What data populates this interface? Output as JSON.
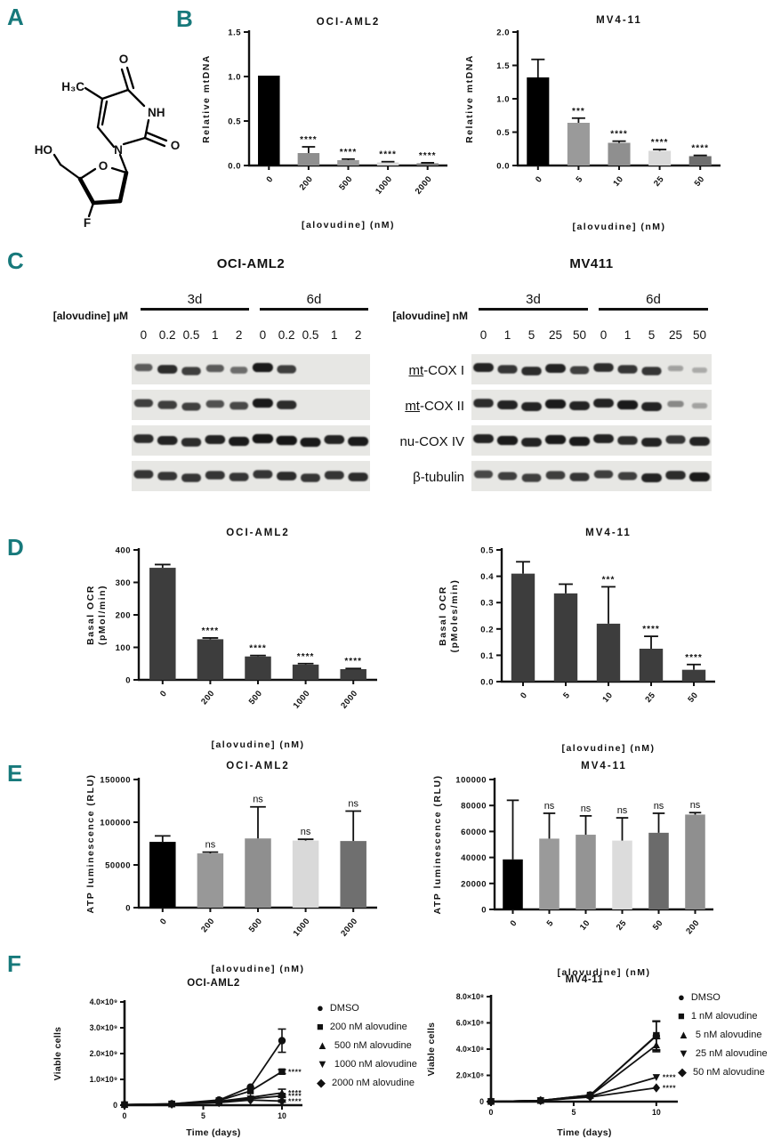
{
  "panels": {
    "a": "A",
    "b": "B",
    "c": "C",
    "d": "D",
    "e": "E",
    "f": "F"
  },
  "colors": {
    "panel_letter": "#17797b",
    "axis": "#111111",
    "bar_black": "#000000",
    "bar_gray": "#8f8f8f",
    "bar_light": "#d9d9d9",
    "bar_dark": "#6e6e6e",
    "band": "#151515",
    "blot_bg": "#e7e7e4"
  },
  "panelA": {
    "molecule_name": "alovudine",
    "atoms": {
      "h3c": "H₃C",
      "o_top": "O",
      "nh": "NH",
      "o_right": "O",
      "n": "N",
      "o_ring": "O",
      "ho": "HO",
      "f": "F"
    }
  },
  "panelC": {
    "row_labels": [
      {
        "prefix": "mt",
        "rest": "-COX I",
        "underline": true
      },
      {
        "prefix": "mt",
        "rest": "-COX II",
        "underline": true
      },
      {
        "prefix": "nu",
        "rest": "-COX IV",
        "underline": false
      },
      {
        "prefix": "β",
        "rest": "-tubulin",
        "underline": false
      }
    ],
    "left": {
      "title": "OCI-AML2",
      "unit_label": "[alovudine] µM",
      "group1": "3d",
      "group2": "6d",
      "lanes": [
        "0",
        "0.2",
        "0.5",
        "1",
        "2",
        "0",
        "0.2",
        "0.5",
        "1",
        "2"
      ],
      "rows": [
        {
          "name": "mt-COX I",
          "intensities": [
            0.55,
            0.85,
            0.75,
            0.55,
            0.45,
            0.95,
            0.75,
            0,
            0,
            0
          ]
        },
        {
          "name": "mt-COX II",
          "intensities": [
            0.7,
            0.75,
            0.7,
            0.6,
            0.65,
            0.95,
            0.85,
            0,
            0,
            0
          ]
        },
        {
          "name": "nu-COX IV",
          "intensities": [
            0.85,
            0.9,
            0.85,
            0.9,
            0.95,
            1,
            1,
            0.95,
            0.9,
            0.95
          ]
        },
        {
          "name": "β-tubulin",
          "intensities": [
            0.8,
            0.8,
            0.8,
            0.8,
            0.8,
            0.8,
            0.85,
            0.8,
            0.8,
            0.85
          ]
        }
      ]
    },
    "right": {
      "title": "MV411",
      "unit_label": "[alovudine] nM",
      "group1": "3d",
      "group2": "6d",
      "lanes": [
        "0",
        "1",
        "5",
        "25",
        "50",
        "0",
        "1",
        "5",
        "25",
        "50"
      ],
      "rows": [
        {
          "name": "mt-COX I",
          "intensities": [
            0.9,
            0.8,
            0.85,
            0.9,
            0.7,
            0.85,
            0.8,
            0.8,
            0.15,
            0.1
          ]
        },
        {
          "name": "mt-COX II",
          "intensities": [
            0.85,
            0.9,
            0.9,
            0.95,
            0.9,
            0.9,
            0.95,
            0.9,
            0.3,
            0.15
          ]
        },
        {
          "name": "nu-COX IV",
          "intensities": [
            0.9,
            0.95,
            0.9,
            0.95,
            0.95,
            0.9,
            0.85,
            0.9,
            0.8,
            0.9
          ]
        },
        {
          "name": "β-tubulin",
          "intensities": [
            0.65,
            0.7,
            0.75,
            0.75,
            0.8,
            0.7,
            0.7,
            0.9,
            0.85,
            0.95
          ]
        }
      ]
    }
  },
  "chart_data": [
    {
      "id": "b-left",
      "type": "bar",
      "title": "OCI-AML2",
      "ylabel": "Relative mtDNA",
      "xlabel": "[alovudine] (nM)",
      "categories": [
        "0",
        "200",
        "500",
        "1000",
        "2000"
      ],
      "values": [
        1.01,
        0.14,
        0.06,
        0.035,
        0.025
      ],
      "errors": [
        0,
        0.07,
        0.012,
        0.008,
        0.006
      ],
      "sig": [
        "",
        "****",
        "****",
        "****",
        "****"
      ],
      "bar_colors": [
        "#000000",
        "#8f8f8f",
        "#9a9a9a",
        "#d9d9d9",
        "#7f7f7f"
      ],
      "ylim": [
        0,
        1.5
      ],
      "yticks": [
        0,
        0.5,
        1,
        1.5
      ],
      "ytick_labels": [
        "0.0",
        "0.5",
        "1.0",
        "1.5"
      ]
    },
    {
      "id": "b-right",
      "type": "bar",
      "title": "MV4-11",
      "ylabel": "Relative mtDNA",
      "xlabel": "[alovudine] (nM)",
      "categories": [
        "0",
        "5",
        "10",
        "25",
        "50"
      ],
      "values": [
        1.32,
        0.64,
        0.34,
        0.22,
        0.14
      ],
      "errors": [
        0.27,
        0.07,
        0.025,
        0.02,
        0.012
      ],
      "sig": [
        "",
        "***",
        "****",
        "****",
        "****"
      ],
      "bar_colors": [
        "#000000",
        "#9a9a9a",
        "#8f8f8f",
        "#d9d9d9",
        "#6e6e6e"
      ],
      "ylim": [
        0,
        2
      ],
      "yticks": [
        0,
        0.5,
        1,
        1.5,
        2
      ],
      "ytick_labels": [
        "0.0",
        "0.5",
        "1.0",
        "1.5",
        "2.0"
      ]
    },
    {
      "id": "d-left",
      "type": "bar",
      "title": "OCI-AML2",
      "ylabel_lines": [
        "Basal OCR",
        "(pMol/min)"
      ],
      "xlabel": "[alovudine] (nM)",
      "categories": [
        "0",
        "200",
        "500",
        "1000",
        "2000"
      ],
      "values": [
        345,
        125,
        72,
        47,
        33
      ],
      "errors": [
        10,
        4,
        3,
        3,
        2
      ],
      "sig": [
        "",
        "****",
        "****",
        "****",
        "****"
      ],
      "bar_colors": [
        "#3d3d3d",
        "#3d3d3d",
        "#3d3d3d",
        "#3d3d3d",
        "#3d3d3d"
      ],
      "ylim": [
        0,
        400
      ],
      "yticks": [
        0,
        100,
        200,
        300,
        400
      ],
      "ytick_labels": [
        "0",
        "100",
        "200",
        "300",
        "400"
      ]
    },
    {
      "id": "d-right",
      "type": "bar",
      "title": "MV4-11",
      "ylabel_lines": [
        "Basal OCR",
        "(pMoles/min)"
      ],
      "xlabel": "[alovudine] (nM)",
      "categories": [
        "0",
        "5",
        "10",
        "25",
        "50"
      ],
      "values": [
        0.41,
        0.335,
        0.22,
        0.125,
        0.045
      ],
      "errors": [
        0.045,
        0.035,
        0.14,
        0.047,
        0.02
      ],
      "sig": [
        "",
        "",
        "***",
        "****",
        "****"
      ],
      "bar_colors": [
        "#3d3d3d",
        "#3d3d3d",
        "#3d3d3d",
        "#3d3d3d",
        "#3d3d3d"
      ],
      "ylim": [
        0,
        0.5
      ],
      "yticks": [
        0,
        0.1,
        0.2,
        0.3,
        0.4,
        0.5
      ],
      "ytick_labels": [
        "0.0",
        "0.1",
        "0.2",
        "0.3",
        "0.4",
        "0.5"
      ]
    },
    {
      "id": "e-left",
      "type": "bar",
      "title": "OCI-AML2",
      "ylabel": "ATP luminescence (RLU)",
      "xlabel": "[alovudine] (nM)",
      "categories": [
        "0",
        "200",
        "500",
        "1000",
        "2000"
      ],
      "values": [
        77000,
        63500,
        81000,
        78500,
        78000
      ],
      "errors": [
        7000,
        1500,
        37000,
        1500,
        35000
      ],
      "sig": [
        "",
        "ns",
        "ns",
        "ns",
        "ns"
      ],
      "bar_colors": [
        "#000000",
        "#989898",
        "#8f8f8f",
        "#d9d9d9",
        "#6f6f6f"
      ],
      "ylim": [
        0,
        150000
      ],
      "yticks": [
        0,
        50000,
        100000,
        150000
      ],
      "ytick_labels": [
        "0",
        "50000",
        "100000",
        "150000"
      ]
    },
    {
      "id": "e-right",
      "type": "bar",
      "title": "MV4-11",
      "ylabel": "ATP luminescence (RLU)",
      "xlabel": "[alovudine] (nM)",
      "categories": [
        "0",
        "5",
        "10",
        "25",
        "50",
        "200"
      ],
      "values": [
        38500,
        54500,
        57500,
        53000,
        59000,
        73000
      ],
      "errors": [
        45500,
        19500,
        14500,
        17500,
        15000,
        1500
      ],
      "sig": [
        "",
        "ns",
        "ns",
        "ns",
        "ns",
        "ns"
      ],
      "bar_colors": [
        "#000000",
        "#9a9a9a",
        "#949494",
        "#dcdcdc",
        "#6b6b6b",
        "#8f8f8f"
      ],
      "ylim": [
        0,
        100000
      ],
      "yticks": [
        0,
        20000,
        40000,
        60000,
        80000,
        100000
      ],
      "ytick_labels": [
        "0",
        "20000",
        "40000",
        "60000",
        "80000",
        "100000"
      ]
    },
    {
      "id": "f-left",
      "type": "line",
      "title": "OCI-AML2",
      "ylabel": "Viable cells",
      "xlabel": "Time (days)",
      "x": [
        0,
        3,
        6,
        8,
        10
      ],
      "xlim": [
        0,
        11.3
      ],
      "xticks": [
        0,
        5,
        10
      ],
      "xtick_labels": [
        "0",
        "5",
        "10"
      ],
      "ylim": [
        0,
        4000000000
      ],
      "yticks": [
        0,
        1000000000,
        2000000000,
        3000000000,
        4000000000
      ],
      "ytick_labels": [
        "0",
        "1.0×10⁹",
        "2.0×10⁹",
        "3.0×10⁹",
        "4.0×10⁹"
      ],
      "legend_position": "right",
      "series": [
        {
          "name": "DMSO",
          "marker": "circle",
          "values": [
            20000000,
            50000000,
            200000000,
            700000000,
            2500000000
          ],
          "err_last": 450000000,
          "sig": ""
        },
        {
          "name": "200 nM alovudine",
          "marker": "square",
          "values": [
            20000000,
            50000000,
            180000000,
            550000000,
            1300000000
          ],
          "err_last": 80000000,
          "sig": "****"
        },
        {
          "name": "500 nM alovudine",
          "marker": "triangle-up",
          "values": [
            20000000,
            40000000,
            150000000,
            300000000,
            480000000
          ],
          "err_last": 140000000,
          "sig": "****"
        },
        {
          "name": "1000 nM alovudine",
          "marker": "triangle-down",
          "values": [
            20000000,
            40000000,
            120000000,
            250000000,
            360000000
          ],
          "err_last": 60000000,
          "sig": "****"
        },
        {
          "name": "2000 nM alovudine",
          "marker": "diamond",
          "values": [
            20000000,
            40000000,
            100000000,
            200000000,
            160000000
          ],
          "err_last": 40000000,
          "sig": "****"
        }
      ]
    },
    {
      "id": "f-right",
      "type": "line",
      "title": "MV4-11",
      "ylabel": "Viable cells",
      "xlabel": "Time (days)",
      "x": [
        0,
        3,
        6,
        10
      ],
      "xlim": [
        0,
        11.3
      ],
      "xticks": [
        0,
        5,
        10
      ],
      "xtick_labels": [
        "0",
        "5",
        "10"
      ],
      "ylim": [
        0,
        800000000
      ],
      "yticks": [
        0,
        200000000,
        400000000,
        600000000,
        800000000
      ],
      "ytick_labels": [
        "0",
        "2.0×10⁸",
        "4.0×10⁸",
        "6.0×10⁸",
        "8.0×10⁸"
      ],
      "legend_position": "right",
      "series": [
        {
          "name": "DMSO",
          "marker": "circle",
          "values": [
            1000000,
            8000000,
            50000000,
            500000000
          ],
          "err_last": 110000000,
          "sig": ""
        },
        {
          "name": "1 nM alovudine",
          "marker": "square",
          "values": [
            1000000,
            8000000,
            50000000,
            505000000
          ],
          "err_last": 110000000,
          "sig": ""
        },
        {
          "name": "5 nM alovudine",
          "marker": "triangle-up",
          "values": [
            1000000,
            8000000,
            45000000,
            430000000
          ],
          "err_last": 50000000,
          "sig": ""
        },
        {
          "name": "25 nM alovudine",
          "marker": "triangle-down",
          "values": [
            1000000,
            8000000,
            40000000,
            185000000
          ],
          "err_last": 0,
          "sig": "****"
        },
        {
          "name": "50 nM alovudine",
          "marker": "diamond",
          "values": [
            1000000,
            8000000,
            35000000,
            105000000
          ],
          "err_last": 0,
          "sig": "****"
        }
      ]
    }
  ]
}
